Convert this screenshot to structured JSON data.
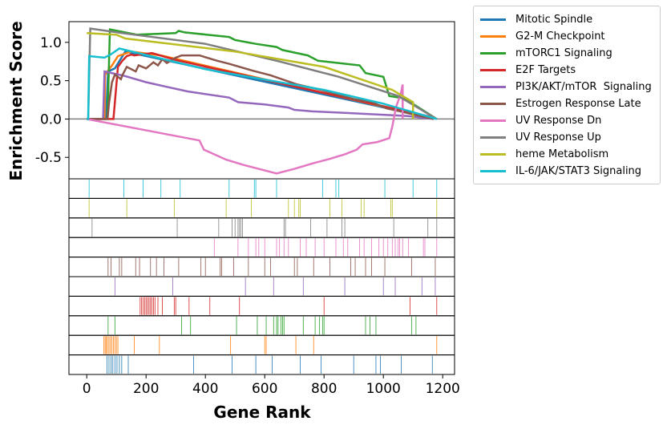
{
  "chart_data": {
    "type": "line",
    "xlabel": "Gene Rank",
    "ylabel": "Enrichment Score",
    "xlim": [
      -60,
      1240
    ],
    "ylim": [
      -0.78,
      1.27
    ],
    "xticks": [
      0,
      200,
      400,
      600,
      800,
      1000,
      1200
    ],
    "yticks": [
      -0.5,
      0.0,
      0.5,
      1.0
    ],
    "ytick_labels": [
      "-0.5",
      "0.0",
      "0.5",
      "1.0"
    ],
    "zero_line": true,
    "legend_position": "outside-right",
    "series": [
      {
        "name": "Mitotic Spindle",
        "color": "#1f77b4",
        "points": [
          [
            0,
            0
          ],
          [
            65,
            0
          ],
          [
            72,
            0.62
          ],
          [
            95,
            0.66
          ],
          [
            130,
            0.88
          ],
          [
            1170,
            0.01
          ]
        ],
        "hits": [
          68,
          75,
          82,
          88,
          95,
          102,
          110,
          118,
          140,
          360,
          490,
          570,
          625,
          720,
          790,
          900,
          975,
          990,
          1060,
          1165
        ]
      },
      {
        "name": "G2-M Checkpoint",
        "color": "#ff7f0e",
        "points": [
          [
            0,
            0
          ],
          [
            60,
            0
          ],
          [
            62,
            0.58
          ],
          [
            85,
            0.7
          ],
          [
            105,
            0.82
          ],
          [
            150,
            0.88
          ],
          [
            250,
            0.83
          ],
          [
            1170,
            0.01
          ]
        ],
        "hits": [
          58,
          62,
          66,
          70,
          75,
          80,
          85,
          90,
          95,
          100,
          105,
          160,
          245,
          485,
          600,
          605,
          705,
          765,
          1180
        ]
      },
      {
        "name": "mTORC1 Signaling",
        "color": "#2ca02c",
        "points": [
          [
            0,
            0
          ],
          [
            70,
            0
          ],
          [
            78,
            1.17
          ],
          [
            170,
            1.1
          ],
          [
            300,
            1.12
          ],
          [
            310,
            1.15
          ],
          [
            330,
            1.13
          ],
          [
            480,
            1.07
          ],
          [
            500,
            1.03
          ],
          [
            570,
            0.98
          ],
          [
            640,
            0.94
          ],
          [
            660,
            0.9
          ],
          [
            745,
            0.83
          ],
          [
            780,
            0.76
          ],
          [
            920,
            0.7
          ],
          [
            940,
            0.6
          ],
          [
            1000,
            0.55
          ],
          [
            1020,
            0.3
          ],
          [
            1070,
            0.27
          ],
          [
            1180,
            0.0
          ]
        ],
        "hits": [
          72,
          95,
          320,
          350,
          505,
          575,
          605,
          630,
          640,
          645,
          655,
          660,
          665,
          730,
          770,
          785,
          795,
          800,
          940,
          955,
          975,
          1095,
          1110
        ]
      },
      {
        "name": "E2F Targets",
        "color": "#d62728",
        "points": [
          [
            0,
            0
          ],
          [
            90,
            0
          ],
          [
            105,
            0.68
          ],
          [
            120,
            0.76
          ],
          [
            135,
            0.82
          ],
          [
            150,
            0.84
          ],
          [
            160,
            0.83
          ],
          [
            220,
            0.86
          ],
          [
            300,
            0.77
          ],
          [
            1170,
            0.02
          ]
        ],
        "hits": [
          180,
          185,
          190,
          195,
          200,
          205,
          210,
          215,
          220,
          225,
          230,
          240,
          255,
          295,
          300,
          345,
          415,
          515,
          800,
          1090,
          1180
        ]
      },
      {
        "name": "PI3K/AKT/mTOR  Signaling",
        "color": "#9467bd",
        "points": [
          [
            0,
            0
          ],
          [
            55,
            0
          ],
          [
            60,
            0.62
          ],
          [
            130,
            0.56
          ],
          [
            200,
            0.48
          ],
          [
            270,
            0.42
          ],
          [
            340,
            0.36
          ],
          [
            480,
            0.28
          ],
          [
            510,
            0.22
          ],
          [
            600,
            0.19
          ],
          [
            680,
            0.15
          ],
          [
            700,
            0.12
          ],
          [
            760,
            0.1
          ],
          [
            870,
            0.08
          ],
          [
            1080,
            0.04
          ],
          [
            1170,
            0.0
          ]
        ],
        "hits": [
          95,
          290,
          535,
          630,
          730,
          870,
          1000,
          1040,
          1130,
          1175
        ]
      },
      {
        "name": "Estrogen Response Late",
        "color": "#8c564b",
        "points": [
          [
            0,
            0
          ],
          [
            70,
            0
          ],
          [
            75,
            0.2
          ],
          [
            85,
            0.48
          ],
          [
            95,
            0.58
          ],
          [
            115,
            0.52
          ],
          [
            120,
            0.57
          ],
          [
            135,
            0.68
          ],
          [
            165,
            0.62
          ],
          [
            175,
            0.7
          ],
          [
            200,
            0.66
          ],
          [
            225,
            0.74
          ],
          [
            240,
            0.7
          ],
          [
            255,
            0.78
          ],
          [
            270,
            0.73
          ],
          [
            300,
            0.8
          ],
          [
            320,
            0.83
          ],
          [
            380,
            0.83
          ],
          [
            440,
            0.76
          ],
          [
            480,
            0.72
          ],
          [
            560,
            0.63
          ],
          [
            620,
            0.57
          ],
          [
            710,
            0.45
          ],
          [
            790,
            0.38
          ],
          [
            900,
            0.26
          ],
          [
            960,
            0.22
          ],
          [
            1010,
            0.14
          ],
          [
            1170,
            0.0
          ]
        ],
        "hits": [
          72,
          82,
          110,
          118,
          165,
          178,
          215,
          235,
          260,
          310,
          385,
          400,
          450,
          455,
          495,
          545,
          600,
          620,
          700,
          710,
          765,
          820,
          890,
          905,
          940,
          960,
          1005,
          1095,
          1175
        ]
      },
      {
        "name": "UV Response Dn",
        "color": "#e377c2",
        "points": [
          [
            0,
            0
          ],
          [
            380,
            -0.28
          ],
          [
            395,
            -0.4
          ],
          [
            470,
            -0.53
          ],
          [
            530,
            -0.6
          ],
          [
            640,
            -0.71
          ],
          [
            700,
            -0.65
          ],
          [
            760,
            -0.58
          ],
          [
            820,
            -0.52
          ],
          [
            870,
            -0.46
          ],
          [
            910,
            -0.4
          ],
          [
            930,
            -0.33
          ],
          [
            980,
            -0.3
          ],
          [
            1020,
            -0.25
          ],
          [
            1030,
            -0.1
          ],
          [
            1040,
            0.1
          ],
          [
            1045,
            0.18
          ],
          [
            1058,
            0.32
          ],
          [
            1065,
            0.45
          ],
          [
            1065,
            0
          ]
        ],
        "hits": [
          430,
          510,
          545,
          570,
          580,
          600,
          640,
          650,
          665,
          680,
          720,
          740,
          770,
          800,
          840,
          865,
          880,
          920,
          935,
          960,
          985,
          1000,
          1015,
          1030,
          1040,
          1050,
          1055,
          1065,
          1085,
          1135,
          1140,
          1180
        ]
      },
      {
        "name": "UV Response Up",
        "color": "#7f7f7f",
        "points": [
          [
            0,
            0
          ],
          [
            5,
            0
          ],
          [
            12,
            1.18
          ],
          [
            120,
            1.12
          ],
          [
            400,
            0.98
          ],
          [
            650,
            0.75
          ],
          [
            850,
            0.55
          ],
          [
            1050,
            0.3
          ],
          [
            1180,
            0.0
          ]
        ],
        "hits": [
          18,
          305,
          445,
          490,
          500,
          510,
          515,
          520,
          525,
          665,
          670,
          755,
          810,
          860,
          870,
          1035,
          1150,
          1180
        ]
      },
      {
        "name": "heme Metabolism",
        "color": "#bcbd22",
        "points": [
          [
            0,
            1.12
          ],
          [
            100,
            1.1
          ],
          [
            130,
            1.05
          ],
          [
            500,
            0.88
          ],
          [
            800,
            0.68
          ],
          [
            1030,
            0.38
          ],
          [
            1100,
            0.22
          ],
          [
            1100,
            0
          ]
        ],
        "hits": [
          8,
          135,
          295,
          470,
          555,
          680,
          700,
          715,
          720,
          820,
          860,
          925,
          935,
          1025,
          1030,
          1180
        ]
      },
      {
        "name": "IL-6/JAK/STAT3 Signaling",
        "color": "#17becf",
        "points": [
          [
            0,
            0
          ],
          [
            5,
            0
          ],
          [
            8,
            0.82
          ],
          [
            60,
            0.8
          ],
          [
            80,
            0.84
          ],
          [
            110,
            0.92
          ],
          [
            400,
            0.65
          ],
          [
            800,
            0.38
          ],
          [
            1000,
            0.2
          ],
          [
            1180,
            0.0
          ]
        ],
        "hits": [
          8,
          125,
          190,
          250,
          315,
          480,
          565,
          570,
          640,
          795,
          840,
          850,
          1005,
          1100,
          1180
        ]
      }
    ]
  }
}
